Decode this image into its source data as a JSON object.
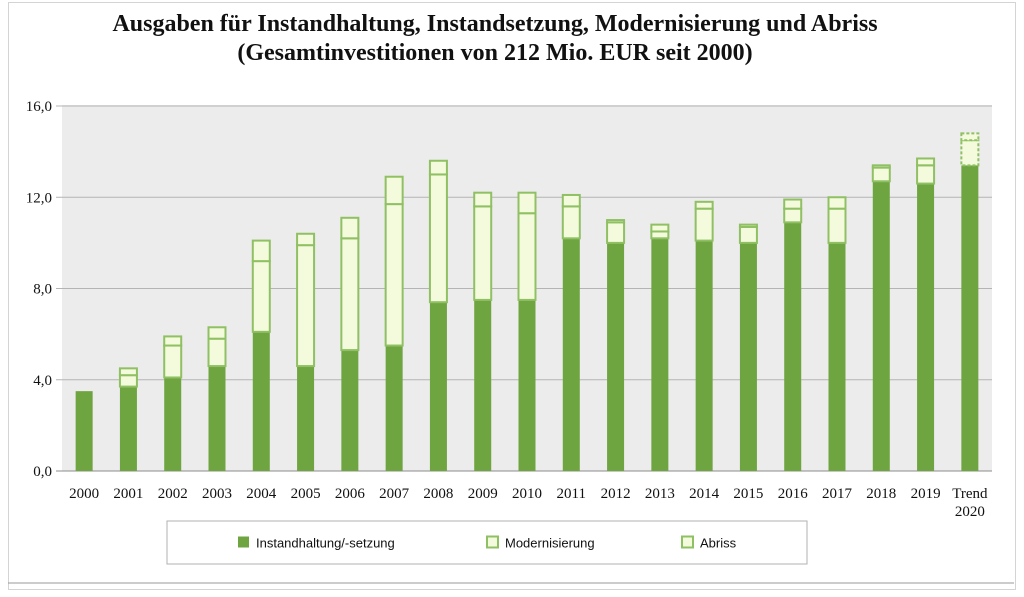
{
  "chart_data": {
    "type": "bar",
    "stacked": true,
    "title": "Ausgaben für Instandhaltung, Instandsetzung, Modernisierung und Abriss (Gesamtinvestitionen von 212 Mio. EUR seit 2000)",
    "categories": [
      "2000",
      "2001",
      "2002",
      "2003",
      "2004",
      "2005",
      "2006",
      "2007",
      "2008",
      "2009",
      "2010",
      "2011",
      "2012",
      "2013",
      "2014",
      "2015",
      "2016",
      "2017",
      "2018",
      "2019",
      "Trend 2020"
    ],
    "series": [
      {
        "name": "Instandhaltung/-setzung",
        "values": [
          3.5,
          3.7,
          4.1,
          4.6,
          6.1,
          4.6,
          5.3,
          5.5,
          7.4,
          7.5,
          7.5,
          10.2,
          10.0,
          10.2,
          10.1,
          10.0,
          10.9,
          10.0,
          12.7,
          12.6,
          13.4
        ]
      },
      {
        "name": "Modernisierung",
        "values": [
          0.0,
          0.5,
          1.4,
          1.2,
          3.1,
          5.3,
          4.9,
          6.2,
          5.6,
          4.1,
          3.8,
          1.4,
          0.9,
          0.3,
          1.4,
          0.7,
          0.6,
          1.5,
          0.6,
          0.8,
          1.1
        ]
      },
      {
        "name": "Abriss",
        "values": [
          0.0,
          0.3,
          0.4,
          0.5,
          0.9,
          0.5,
          0.9,
          1.2,
          0.6,
          0.6,
          0.9,
          0.5,
          0.1,
          0.3,
          0.3,
          0.1,
          0.4,
          0.5,
          0.1,
          0.3,
          0.3
        ]
      }
    ],
    "yticks": [
      "0,0",
      "4,0",
      "8,0",
      "12,0",
      "16,0"
    ],
    "ylim": [
      0,
      16
    ],
    "grid": true,
    "legend_position": "bottom",
    "colors": {
      "Instandhaltung/-setzung": "#6fa540",
      "Modernisierung": "#f4fadc",
      "Abriss": "#f4fadc",
      "bar_outline": "#8fc063",
      "plot_background": "#ececec",
      "gridline": "#b4b4b4"
    }
  },
  "legend": {
    "items": [
      {
        "label": "Instandhaltung/-setzung",
        "marker": "filled-green-square"
      },
      {
        "label": "Modernisierung",
        "marker": "green-outlined-square"
      },
      {
        "label": "Abriss",
        "marker": "green-outlined-square"
      }
    ]
  }
}
